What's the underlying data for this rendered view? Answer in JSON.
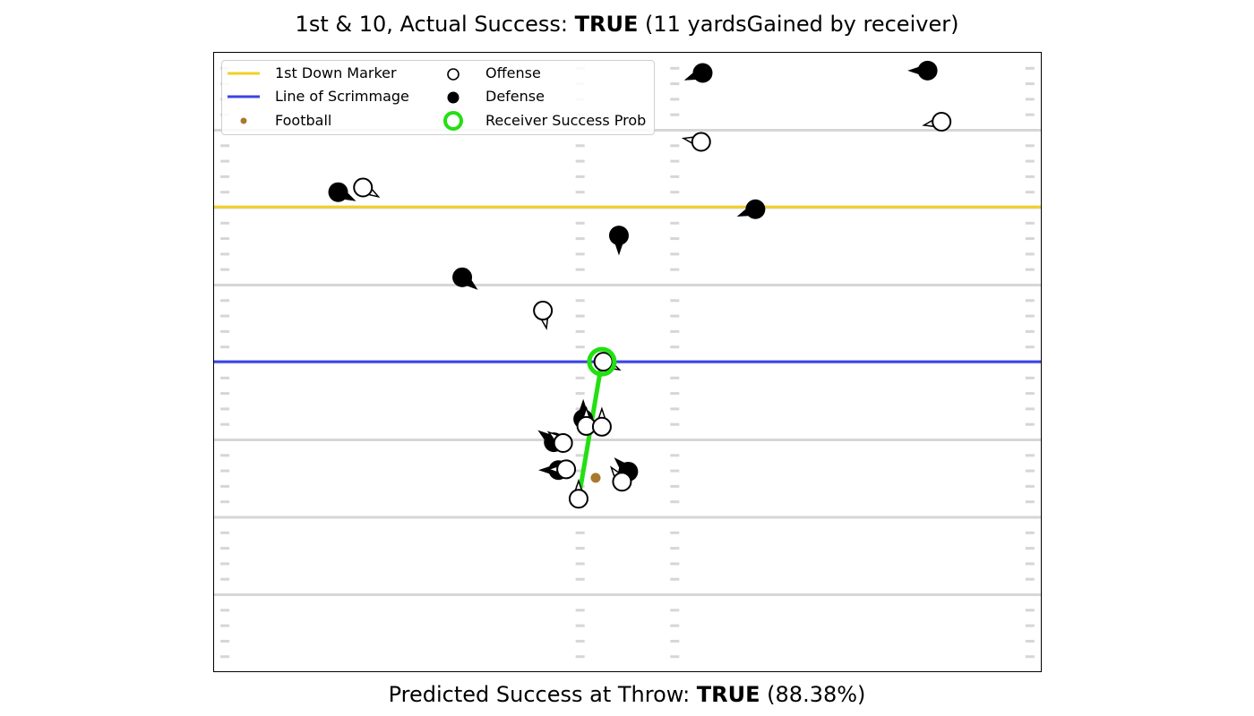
{
  "title": {
    "prefix": "1st & 10, Actual Success: ",
    "bold": "TRUE",
    "suffix": " (11 yardsGained by receiver)"
  },
  "bottom_title": {
    "prefix": "Predicted Success at Throw: ",
    "bold": "TRUE",
    "suffix": " (88.38%)"
  },
  "legend": {
    "first_down": "1st Down Marker",
    "scrimmage": "Line of Scrimmage",
    "football": "Football",
    "offense": "Offense",
    "defense": "Defense",
    "receiver": "Receiver Success Prob"
  },
  "colors": {
    "first_down": "#f0d02a",
    "scrimmage": "#3a43e6",
    "football": "#a8792e",
    "receiver": "#22e011",
    "yard_line": "#d6d6d6",
    "hash": "#d6d6d6"
  },
  "chart_data": {
    "type": "scatter",
    "xlim": [
      0,
      53.3
    ],
    "ylim": [
      0,
      40
    ],
    "yard_lines": [
      5,
      10,
      15,
      20,
      25,
      30,
      35
    ],
    "hash_columns": [
      0.7,
      23.6,
      29.7,
      52.6
    ],
    "line_of_scrimmage": 20.05,
    "first_down_marker": 30.05,
    "football": {
      "x": 24.6,
      "y": 12.55
    },
    "offense": [
      {
        "x": 9.6,
        "y": 31.3,
        "dir": [
          1,
          -0.6
        ]
      },
      {
        "x": 31.4,
        "y": 34.25,
        "dir": [
          -1,
          0.2
        ]
      },
      {
        "x": 46.9,
        "y": 35.55,
        "dir": [
          -1,
          -0.2
        ]
      },
      {
        "x": 21.2,
        "y": 23.35,
        "dir": [
          0.2,
          -1
        ]
      },
      {
        "x": 25.1,
        "y": 20.05,
        "dir": [
          1,
          -0.5
        ]
      },
      {
        "x": 24.0,
        "y": 15.9,
        "dir": [
          0,
          1
        ]
      },
      {
        "x": 25.0,
        "y": 15.85,
        "dir": [
          0,
          1
        ]
      },
      {
        "x": 22.5,
        "y": 14.8,
        "dir": [
          -0.8,
          0.6
        ]
      },
      {
        "x": 22.7,
        "y": 13.1,
        "dir": [
          -1,
          0
        ]
      },
      {
        "x": 26.3,
        "y": 12.3,
        "dir": [
          -0.6,
          0.8
        ]
      },
      {
        "x": 23.5,
        "y": 11.2,
        "dir": [
          0,
          1
        ]
      }
    ],
    "defense": [
      {
        "x": 31.5,
        "y": 38.7,
        "dir": [
          -1,
          -0.4
        ]
      },
      {
        "x": 46.0,
        "y": 38.85,
        "dir": [
          -1,
          0
        ]
      },
      {
        "x": 8.0,
        "y": 31.0,
        "dir": [
          1,
          -0.5
        ]
      },
      {
        "x": 34.9,
        "y": 29.9,
        "dir": [
          -1,
          -0.4
        ]
      },
      {
        "x": 26.1,
        "y": 28.2,
        "dir": [
          0,
          -1
        ]
      },
      {
        "x": 16.0,
        "y": 25.5,
        "dir": [
          1,
          -0.8
        ]
      },
      {
        "x": 23.8,
        "y": 16.35,
        "dir": [
          0,
          1
        ]
      },
      {
        "x": 21.9,
        "y": 14.85,
        "dir": [
          -0.8,
          0.6
        ]
      },
      {
        "x": 22.2,
        "y": 13.05,
        "dir": [
          -1,
          0
        ]
      },
      {
        "x": 26.7,
        "y": 12.95,
        "dir": [
          -0.8,
          0.8
        ]
      }
    ],
    "receiver": {
      "x": 25.0,
      "y": 20.05
    },
    "throw_line": {
      "from": {
        "x": 23.5,
        "y": 11.2
      },
      "to": {
        "x": 25.0,
        "y": 20.05
      }
    }
  }
}
